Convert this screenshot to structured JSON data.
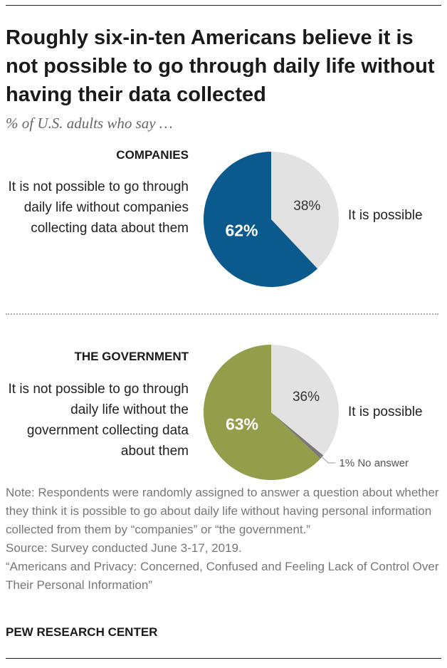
{
  "title": "Roughly six-in-ten Americans believe it is not possible to go through daily life without having their data collected",
  "subtitle": "% of U.S. adults who say …",
  "chart_data": [
    {
      "type": "pie",
      "title": "COMPANIES",
      "left_label": "It is not possible to go through daily life without companies collecting data about them",
      "right_label": "It is possible",
      "slices": [
        {
          "name": "It is not possible",
          "value": 62,
          "label": "62%",
          "color": "#0b5a8e",
          "text_color": "#ffffff"
        },
        {
          "name": "It is possible",
          "value": 38,
          "label": "38%",
          "color": "#e2e2e2",
          "text_color": "#333333"
        }
      ]
    },
    {
      "type": "pie",
      "title": "THE GOVERNMENT",
      "left_label": "It is not possible to go through daily life without the government collecting data about them",
      "right_label": "It is possible",
      "slices": [
        {
          "name": "It is not possible",
          "value": 63,
          "label": "63%",
          "color": "#939d4a",
          "text_color": "#ffffff"
        },
        {
          "name": "It is possible",
          "value": 36,
          "label": "36%",
          "color": "#e2e2e2",
          "text_color": "#333333"
        },
        {
          "name": "No answer",
          "value": 1,
          "label": "1% No answer",
          "color": "#777777",
          "text_color": "#555555"
        }
      ]
    }
  ],
  "note": "Note: Respondents were randomly assigned to answer a question about whether they think it is possible to go about daily life without having personal information collected from them by “companies” or “the government.”",
  "source": "Source: Survey conducted June 3-17, 2019.",
  "report": "“Americans and Privacy: Concerned, Confused and Feeling Lack of Control Over Their Personal Information”",
  "brand": "PEW RESEARCH CENTER"
}
